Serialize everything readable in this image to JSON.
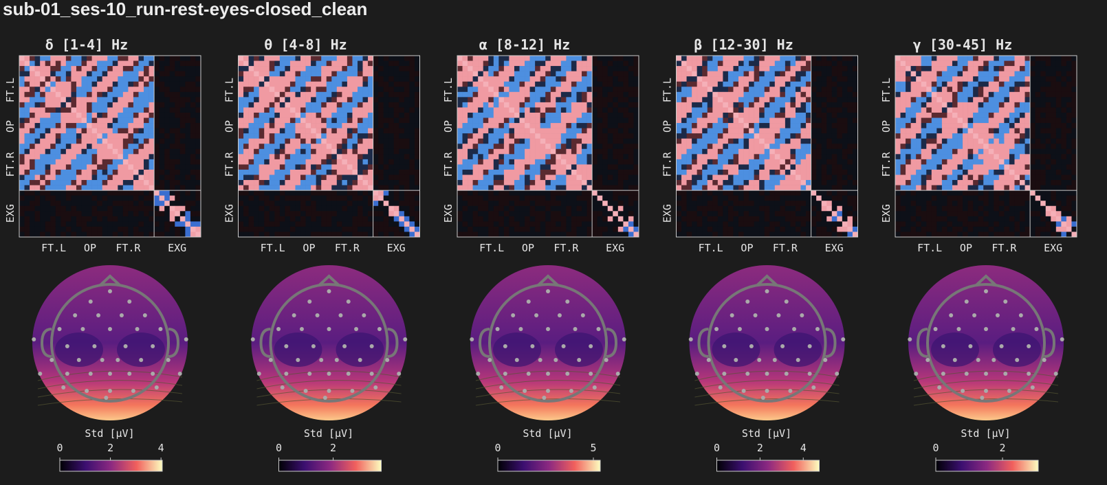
{
  "title": "sub-01_ses-10_run-rest-eyes-closed_clean",
  "matrix_labels": {
    "x": [
      "FT.L",
      "OP",
      "FT.R",
      "EXG"
    ],
    "y": [
      "FT.L",
      "OP",
      "FT.R",
      "EXG"
    ]
  },
  "panels": [
    {
      "title": "δ [1-4] Hz",
      "colorbar": {
        "label": "Std [μV]",
        "lim": [
          0,
          4.05
        ],
        "ticks": [
          0,
          2,
          4
        ]
      }
    },
    {
      "title": "θ [4-8] Hz",
      "colorbar": {
        "label": "Std [μV]",
        "lim": [
          0,
          3.77
        ],
        "ticks": [
          0,
          2
        ]
      }
    },
    {
      "title": "α [8-12] Hz",
      "colorbar": {
        "label": "Std [μV]",
        "lim": [
          0,
          5.36
        ],
        "ticks": [
          0,
          5
        ]
      }
    },
    {
      "title": "β [12-30] Hz",
      "colorbar": {
        "label": "Std [μV]",
        "lim": [
          0,
          4.74
        ],
        "ticks": [
          0,
          2,
          4
        ]
      }
    },
    {
      "title": "γ [30-45] Hz",
      "colorbar": {
        "label": "Std [μV]",
        "lim": [
          0,
          3.07
        ],
        "ticks": [
          0,
          2
        ]
      }
    }
  ]
}
